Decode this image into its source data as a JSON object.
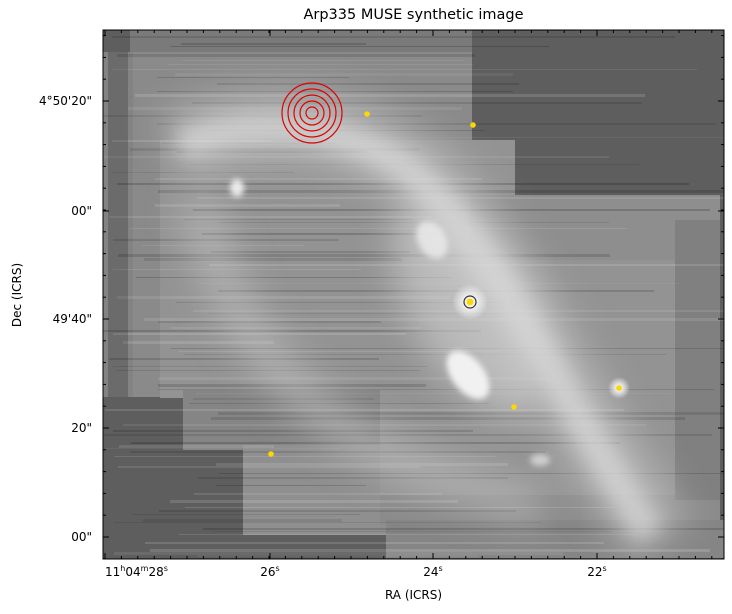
{
  "figure": {
    "title": "Arp335 MUSE synthetic image",
    "xlabel": "RA (ICRS)",
    "ylabel": "Dec (ICRS)",
    "xticks": [
      {
        "h": "11",
        "m": "04",
        "s": "28",
        "full": true
      },
      {
        "s": "26"
      },
      {
        "s": "24"
      },
      {
        "s": "22"
      }
    ],
    "yticks": [
      "4°50'20\"",
      "00\"",
      "49'40\"",
      "20\"",
      "00\""
    ]
  },
  "image": {
    "colormap": "grayscale",
    "background_color": "#5e5e5e",
    "galaxy_color": "#f2f2f2"
  },
  "markers": {
    "source_dot_color": "#ffd700",
    "aperture_ring_color": "#e00000",
    "aperture_ring_count": 5
  }
}
